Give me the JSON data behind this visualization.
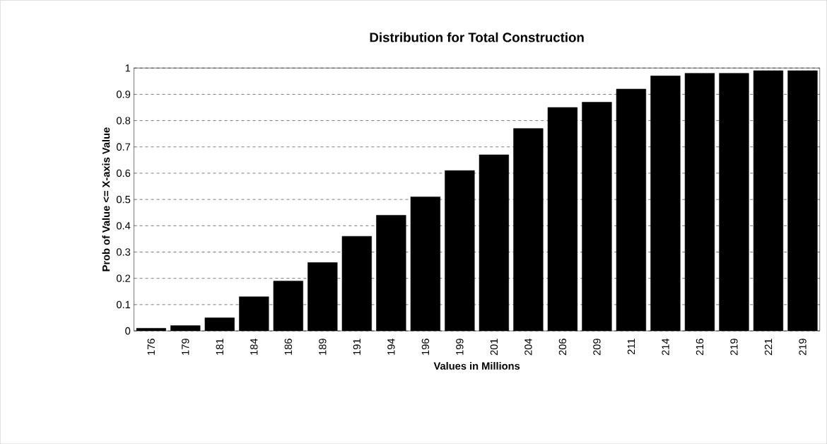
{
  "chart_data": {
    "type": "bar",
    "title": "Distribution for Total Construction",
    "xlabel": "Values in Millions",
    "ylabel": "Prob of Value  <= X-axis Value",
    "categories": [
      "176",
      "179",
      "181",
      "184",
      "186",
      "189",
      "191",
      "194",
      "196",
      "199",
      "201",
      "204",
      "206",
      "209",
      "211",
      "214",
      "216",
      "219",
      "221",
      "219"
    ],
    "values": [
      0.01,
      0.02,
      0.05,
      0.13,
      0.19,
      0.26,
      0.36,
      0.44,
      0.51,
      0.61,
      0.67,
      0.77,
      0.85,
      0.87,
      0.92,
      0.97,
      0.98,
      0.98,
      0.99,
      0.99
    ],
    "color": "#000000",
    "ylim": [
      0,
      1
    ],
    "yticks": [
      0,
      0.1,
      0.2,
      0.3,
      0.4,
      0.5,
      0.6,
      0.7,
      0.8,
      0.9,
      1
    ],
    "grid": "y"
  }
}
